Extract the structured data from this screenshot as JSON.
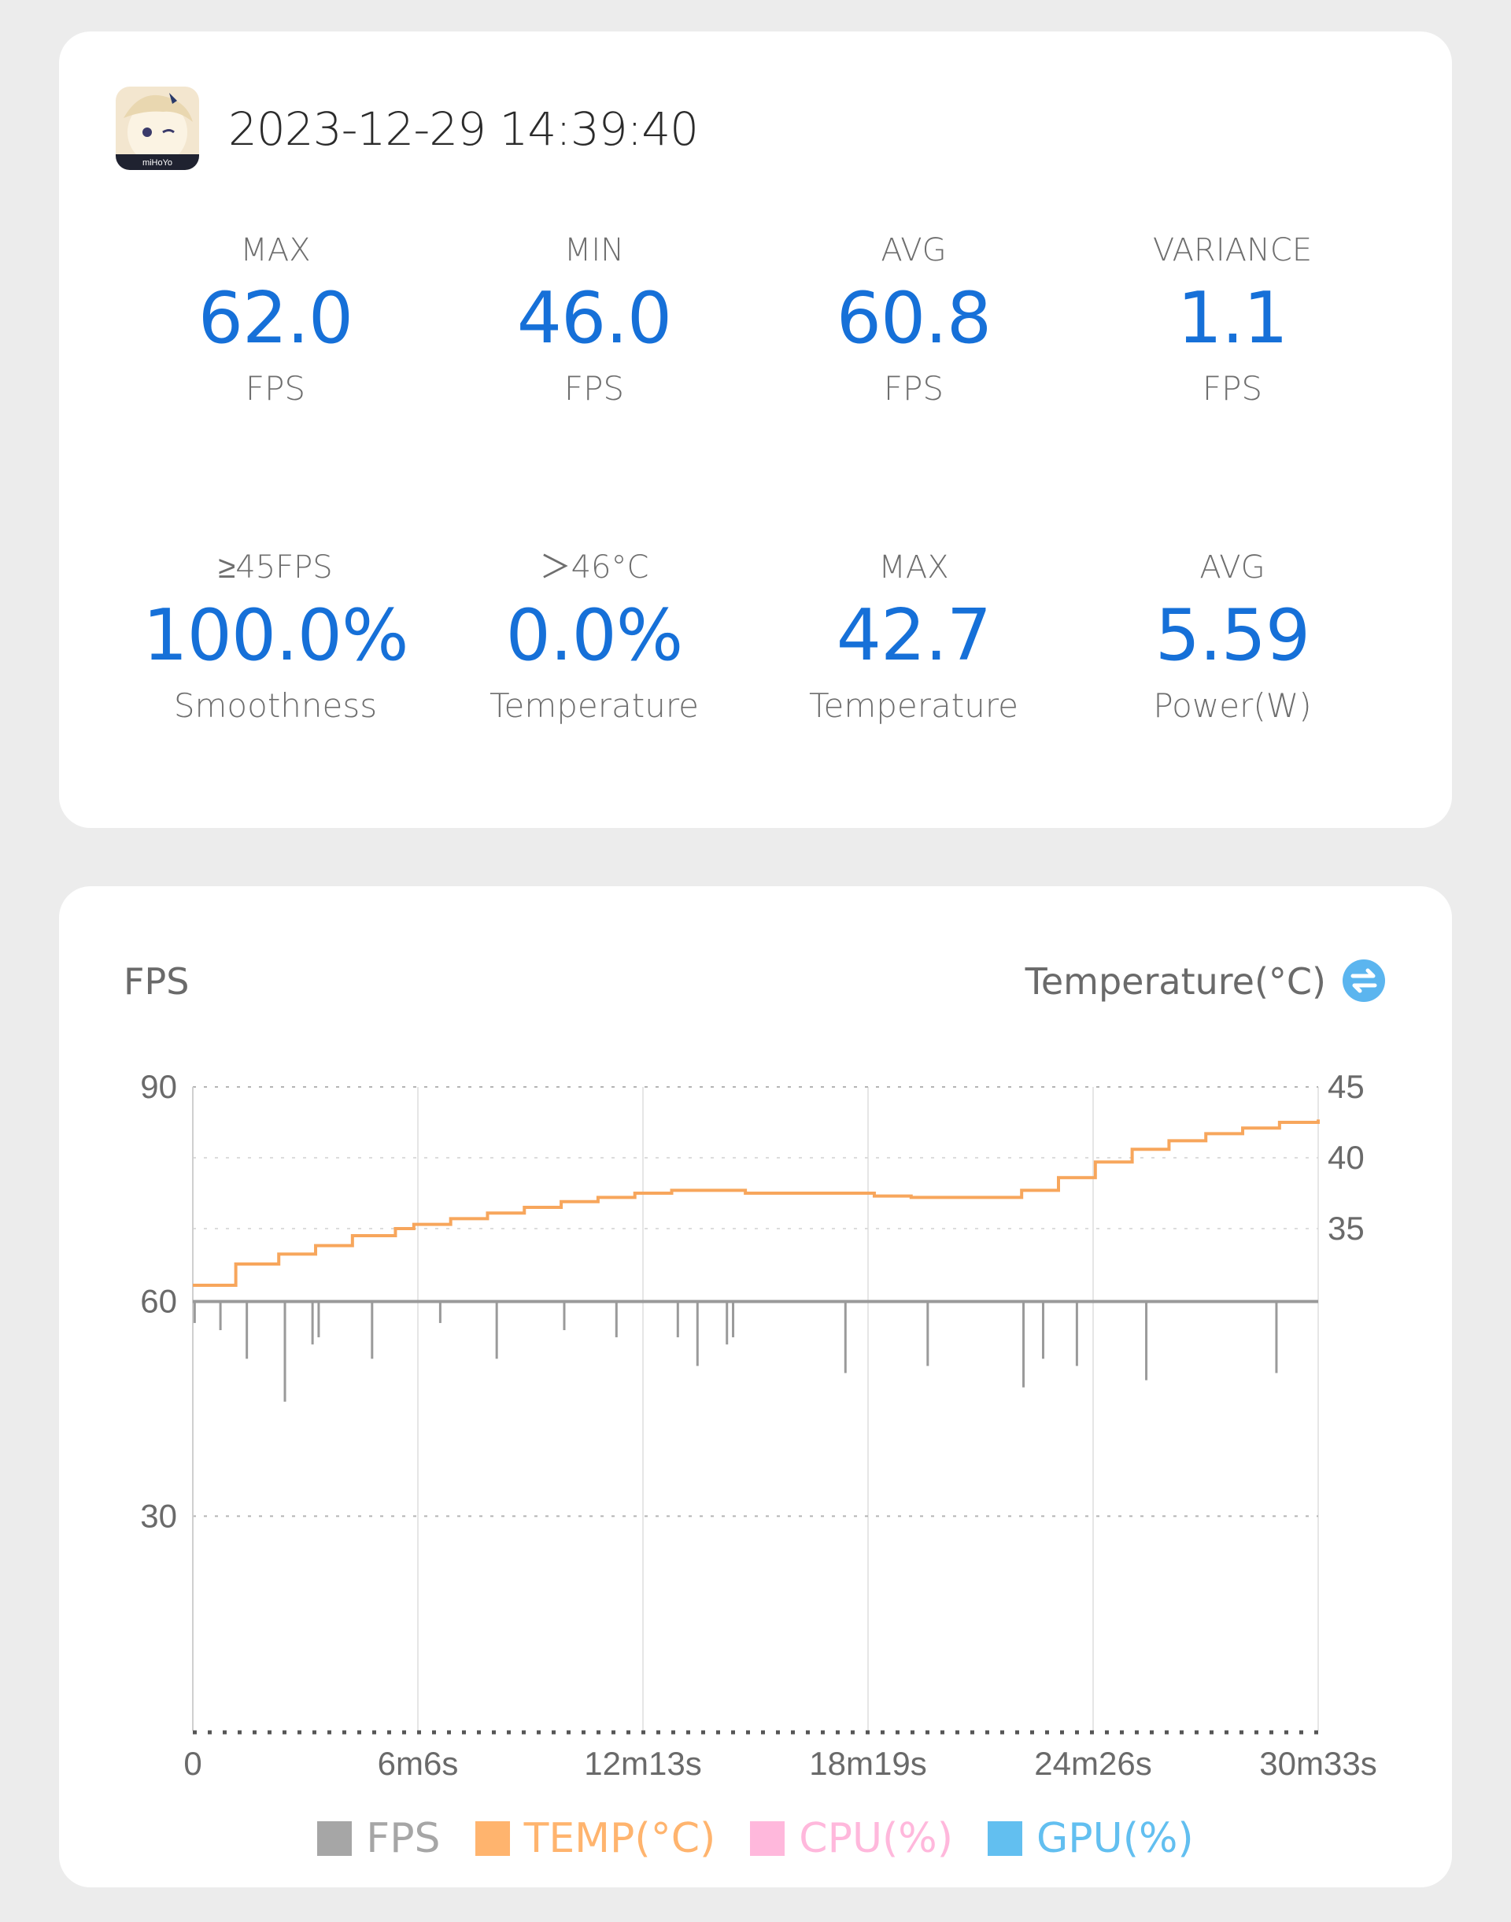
{
  "summary": {
    "timestamp": "2023-12-29 14:39:40",
    "stats": [
      {
        "label": "MAX",
        "value": "62.0",
        "unit": "FPS"
      },
      {
        "label": "MIN",
        "value": "46.0",
        "unit": "FPS"
      },
      {
        "label": "AVG",
        "value": "60.8",
        "unit": "FPS"
      },
      {
        "label": "VARIANCE",
        "value": "1.1",
        "unit": "FPS"
      },
      {
        "label": "≥45FPS",
        "value": "100.0%",
        "unit": "Smoothness"
      },
      {
        "label": "＞46°C",
        "value": "0.0%",
        "unit": "Temperature"
      },
      {
        "label": "MAX",
        "value": "42.7",
        "unit": "Temperature"
      },
      {
        "label": "AVG",
        "value": "5.59",
        "unit": "Power(W)"
      }
    ]
  },
  "chart": {
    "left_axis_title": "FPS",
    "right_axis_title": "Temperature(°C)",
    "swap_icon": "swap-arrows-icon",
    "legend": [
      {
        "label": "FPS",
        "color": "#a6a6a6"
      },
      {
        "label": "TEMP(°C)",
        "color": "#ffb46e"
      },
      {
        "label": "CPU(%)",
        "color": "#ffb8dc"
      },
      {
        "label": "GPU(%)",
        "color": "#62bff0"
      }
    ]
  },
  "chart_data": {
    "type": "line",
    "x_ticks": [
      "0",
      "6m6s",
      "12m13s",
      "18m19s",
      "24m26s",
      "30m33s"
    ],
    "x_range_seconds": [
      0,
      1833
    ],
    "left_axis": {
      "title": "FPS",
      "ticks": [
        30,
        60,
        90
      ],
      "ylim": [
        0,
        90
      ]
    },
    "right_axis": {
      "title": "Temperature(°C)",
      "ticks": [
        35,
        40,
        45
      ]
    },
    "grid": true,
    "legend_position": "bottom",
    "series": [
      {
        "name": "TEMP(°C)",
        "axis": "right",
        "color": "#f7a65c",
        "x_seconds": [
          0,
          70,
          140,
          200,
          260,
          330,
          360,
          420,
          480,
          540,
          600,
          660,
          720,
          780,
          900,
          1050,
          1110,
          1170,
          1290,
          1350,
          1410,
          1470,
          1530,
          1590,
          1650,
          1710,
          1770,
          1833
        ],
        "values": [
          31,
          32.5,
          33.2,
          33.8,
          34.5,
          35,
          35.3,
          35.7,
          36.1,
          36.5,
          36.9,
          37.2,
          37.5,
          37.7,
          37.5,
          37.5,
          37.3,
          37.2,
          37.2,
          37.7,
          38.6,
          39.7,
          40.6,
          41.2,
          41.7,
          42.1,
          42.5,
          42.7
        ]
      },
      {
        "name": "FPS",
        "axis": "left",
        "color": "#9a9a9a",
        "baseline": 60,
        "dips": [
          {
            "t": 3,
            "fps": 57
          },
          {
            "t": 45,
            "fps": 56
          },
          {
            "t": 88,
            "fps": 52
          },
          {
            "t": 150,
            "fps": 46
          },
          {
            "t": 195,
            "fps": 54
          },
          {
            "t": 205,
            "fps": 55
          },
          {
            "t": 292,
            "fps": 52
          },
          {
            "t": 403,
            "fps": 57
          },
          {
            "t": 495,
            "fps": 52
          },
          {
            "t": 605,
            "fps": 56
          },
          {
            "t": 690,
            "fps": 55
          },
          {
            "t": 790,
            "fps": 55
          },
          {
            "t": 822,
            "fps": 51
          },
          {
            "t": 870,
            "fps": 54
          },
          {
            "t": 880,
            "fps": 55
          },
          {
            "t": 1063,
            "fps": 50
          },
          {
            "t": 1197,
            "fps": 51
          },
          {
            "t": 1353,
            "fps": 48
          },
          {
            "t": 1385,
            "fps": 52
          },
          {
            "t": 1440,
            "fps": 51
          },
          {
            "t": 1553,
            "fps": 49
          },
          {
            "t": 1765,
            "fps": 50
          }
        ]
      }
    ]
  }
}
